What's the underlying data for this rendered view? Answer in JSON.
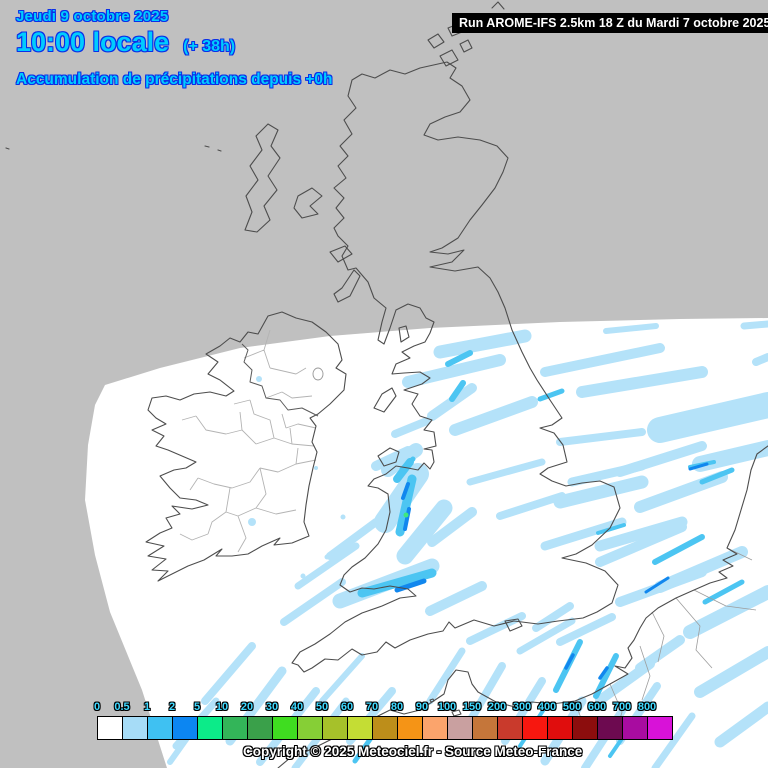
{
  "header": {
    "date_line": "Jeudi 9 octobre 2025",
    "time_line": "10:00 locale",
    "time_offset": "(+ 38h)",
    "subtitle": "Accumulation de précipitations depuis +0h",
    "text_color": "#00ccff",
    "outline_color": "#0b2fe8"
  },
  "run_bar": {
    "label": "Run AROME-IFS 2.5km 18 Z du Mardi 7 octobre 2025",
    "bg": "#000000",
    "text_color": "#ffffff"
  },
  "legend": {
    "unit_labels": [
      "0",
      "0.5",
      "1",
      "2",
      "5",
      "10",
      "20",
      "30",
      "40",
      "50",
      "60",
      "70",
      "80",
      "90",
      "100",
      "150",
      "200",
      "300",
      "400",
      "500",
      "600",
      "700",
      "800"
    ],
    "colors": [
      "#ffffff",
      "#a6dcf7",
      "#3fc1f2",
      "#0c86f2",
      "#0ceb89",
      "#33b559",
      "#3aa04a",
      "#3fdd20",
      "#86cf36",
      "#a6c12a",
      "#c4dd34",
      "#bd8e1a",
      "#f59416",
      "#fba46c",
      "#c9a0a0",
      "#c5763a",
      "#c93a2c",
      "#f7170f",
      "#e00d0d",
      "#8c0d0d",
      "#6d0a50",
      "#a80ca0",
      "#d812d8"
    ],
    "label_color": "#3fd9ff"
  },
  "copyright": "Copyright © 2025 Meteociel.fr - Source Meteo-France",
  "map": {
    "background": "#c0c0c0",
    "domain_fill": "#ffffff",
    "coast_color": "#4d4d4d",
    "boundary_color": "#b3b3b3",
    "precip_palette": {
      "light": "#b4e2f9",
      "medium": "#4cc5f2",
      "heavy": "#1187ee",
      "very_heavy": "#3fe87e"
    }
  }
}
